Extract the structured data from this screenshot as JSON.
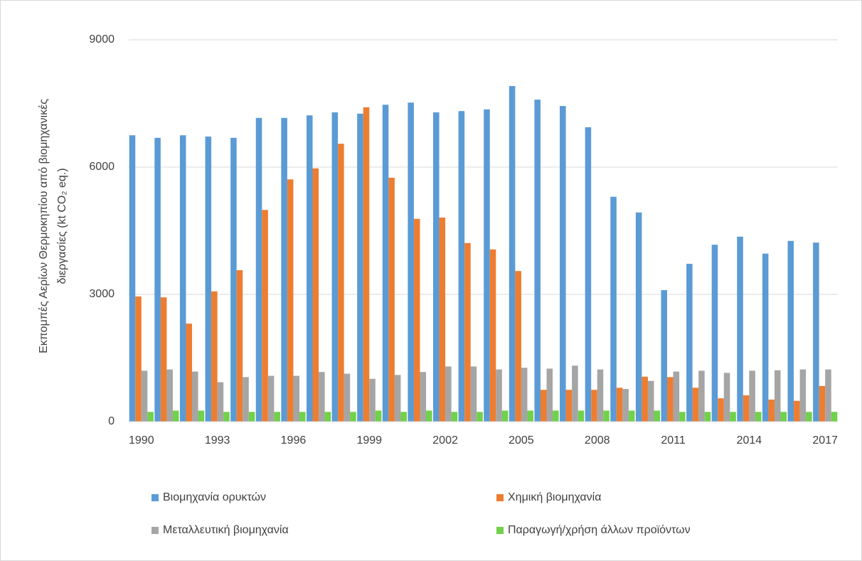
{
  "chart_data": {
    "type": "bar",
    "ylabel": [
      "Εκπομπές Αερίων Θερμοκηπίου από βιομηχανικές",
      "διεργασίες  (kt CO₂ eq.)"
    ],
    "categories": [
      "1990",
      null,
      null,
      "1993",
      null,
      null,
      "1996",
      null,
      null,
      "1999",
      null,
      null,
      "2002",
      null,
      null,
      "2005",
      null,
      null,
      "2008",
      null,
      null,
      "2011",
      null,
      null,
      "2014",
      null,
      null,
      "2017"
    ],
    "series": [
      {
        "name": "Βιομηχανία ορυκτών",
        "color": "#5b9bd5",
        "values": [
          6750,
          6690,
          6750,
          6720,
          6690,
          7160,
          7160,
          7220,
          7290,
          7260,
          7470,
          7520,
          7290,
          7320,
          7360,
          7910,
          7590,
          7440,
          6940,
          5300,
          4930,
          3100,
          3720,
          4170,
          4360,
          3960,
          4260,
          4220
        ]
      },
      {
        "name": "Χημική  βιομηχανία",
        "color": "#ed7d31",
        "values": [
          2950,
          2930,
          2310,
          3070,
          3570,
          4990,
          5710,
          5970,
          6550,
          7410,
          5750,
          4780,
          4810,
          4210,
          4060,
          3550,
          750,
          750,
          750,
          800,
          1060,
          1050,
          800,
          550,
          620,
          520,
          490,
          840
        ]
      },
      {
        "name": "Μεταλλευτική βιομηχανία",
        "color": "#a5a5a5",
        "values": [
          1200,
          1230,
          1180,
          930,
          1050,
          1080,
          1080,
          1170,
          1130,
          1010,
          1100,
          1170,
          1300,
          1300,
          1230,
          1270,
          1250,
          1320,
          1230,
          770,
          960,
          1180,
          1200,
          1150,
          1200,
          1210,
          1230,
          1230
        ]
      },
      {
        "name": "Παραγωγή/χρήση  άλλων προϊόντων",
        "color": "#70d14a",
        "values": [
          230,
          260,
          260,
          230,
          230,
          230,
          230,
          230,
          230,
          260,
          230,
          260,
          230,
          230,
          260,
          260,
          260,
          260,
          260,
          260,
          260,
          230,
          230,
          230,
          230,
          230,
          230,
          230
        ]
      }
    ],
    "ylim": [
      0,
      9000
    ],
    "yticks": [
      0,
      3000,
      6000,
      9000
    ],
    "grid": true,
    "legend": "bottom"
  }
}
